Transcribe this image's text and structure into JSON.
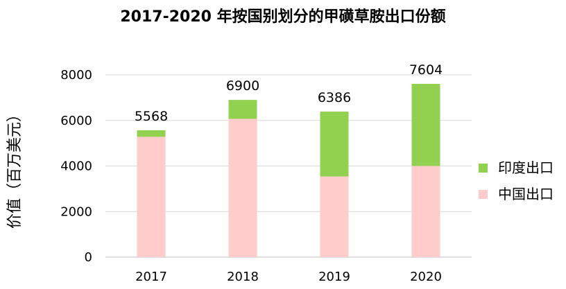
{
  "chart_data": {
    "type": "bar",
    "stacked": true,
    "title": "2017-2020 年按国别划分的甲磺草胺出口份额",
    "xlabel": "",
    "ylabel": "价值（百万美元）",
    "categories": [
      "2017",
      "2018",
      "2019",
      "2020"
    ],
    "series": [
      {
        "name": "中国出口",
        "color": "#ffcccc",
        "values": [
          5280,
          6070,
          3540,
          4000
        ]
      },
      {
        "name": "印度出口",
        "color": "#92d050",
        "values": [
          288,
          830,
          2846,
          3604
        ]
      }
    ],
    "totals": [
      "5568",
      "6900",
      "6386",
      "7604"
    ],
    "ylim": [
      0,
      8000
    ],
    "yticks": [
      "0",
      "2000",
      "4000",
      "6000",
      "8000"
    ],
    "grid": true,
    "legend_position": "right",
    "legend_order": [
      "印度出口",
      "中国出口"
    ],
    "gridline_color": "#d9d9d9",
    "axis_color": "#bfbfbf"
  }
}
